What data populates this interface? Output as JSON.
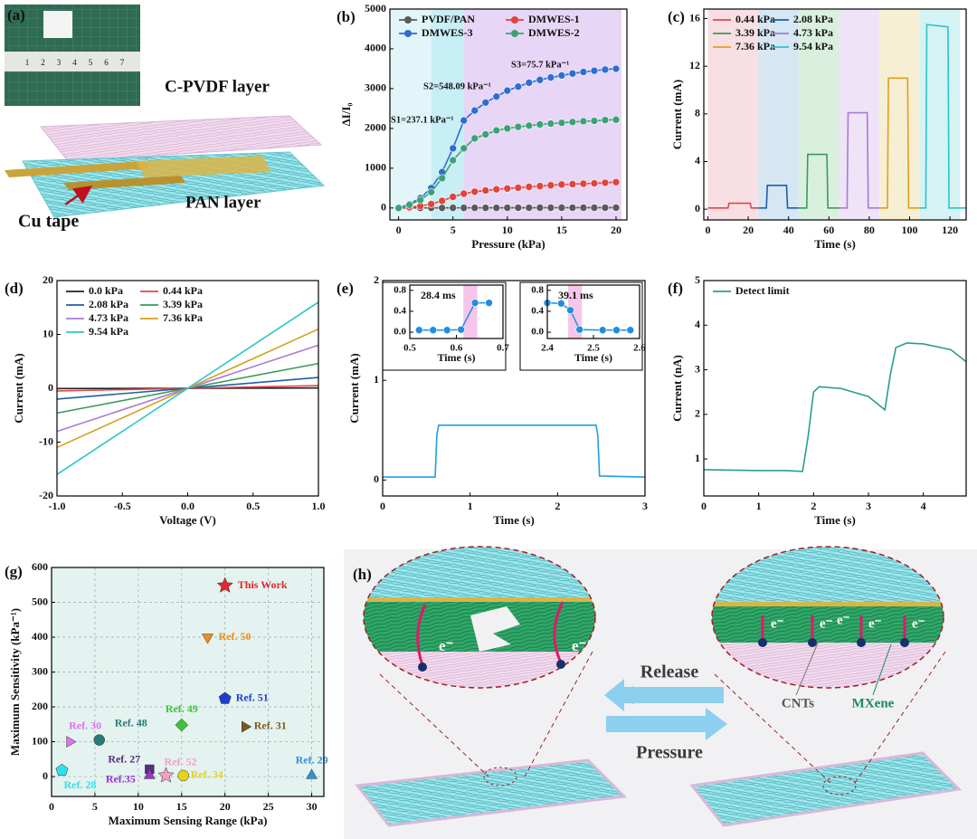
{
  "figure_a": {
    "panel": "(a)",
    "top_layer": "C-PVDF layer",
    "bottom_layer": "PAN layer",
    "electrode": "Cu tape",
    "ruler": [
      1,
      2,
      3,
      4,
      5,
      6,
      7
    ]
  },
  "figure_h": {
    "panel": "(h)",
    "release": "Release",
    "pressure": "Pressure",
    "cnts": "CNTs",
    "mxene": "MXene",
    "electrons": [
      "e⁻",
      "e⁻",
      "e⁻",
      "e⁻",
      "e⁻",
      "e⁻",
      "e⁻"
    ]
  },
  "chart_data": [
    {
      "type": "line",
      "panel": "(b)",
      "xlabel": "Pressure (kPa)",
      "ylabel": "ΔI/I₀",
      "markers": true,
      "legend": "upper left",
      "xlim": [
        -0.8,
        21
      ],
      "ylim": [
        -300,
        5000
      ],
      "xticks": [
        0,
        5,
        10,
        15,
        20
      ],
      "yticks": [
        0,
        1000,
        2000,
        3000,
        4000,
        5000
      ],
      "regions": [
        {
          "x": [
            -0.8,
            3
          ],
          "color": "#e2f6fa"
        },
        {
          "x": [
            3,
            6
          ],
          "color": "#c8eef6"
        },
        {
          "x": [
            6,
            20.5
          ],
          "color": "#e8d6f6"
        }
      ],
      "annotations": [
        "S1=237.1 kPa⁻¹",
        "S2=548.09 kPa⁻¹",
        "S3=75.7 kPa⁻¹"
      ],
      "x": [
        0,
        1,
        2,
        3,
        4,
        5,
        6,
        7,
        8,
        9,
        10,
        11,
        12,
        13,
        14,
        15,
        16,
        17,
        18,
        19,
        20
      ],
      "series": [
        {
          "name": "PVDF/PAN",
          "color": "#5a5a5a",
          "values": [
            0,
            1,
            2,
            3,
            3,
            4,
            4,
            5,
            5,
            5,
            6,
            6,
            6,
            7,
            7,
            7,
            8,
            8,
            8,
            8,
            9
          ]
        },
        {
          "name": "DMWES-1",
          "color": "#e2433b",
          "values": [
            0,
            20,
            50,
            100,
            180,
            280,
            360,
            410,
            440,
            470,
            490,
            510,
            530,
            550,
            570,
            590,
            600,
            610,
            620,
            635,
            650
          ]
        },
        {
          "name": "DMWES-3",
          "color": "#2c6ed2",
          "values": [
            0,
            100,
            250,
            500,
            900,
            1500,
            2200,
            2450,
            2650,
            2800,
            2950,
            3050,
            3150,
            3220,
            3280,
            3330,
            3380,
            3420,
            3450,
            3480,
            3500
          ]
        },
        {
          "name": "DMWES-2",
          "color": "#3aa374",
          "values": [
            0,
            80,
            200,
            400,
            750,
            1200,
            1500,
            1750,
            1850,
            1950,
            2000,
            2040,
            2070,
            2100,
            2120,
            2140,
            2160,
            2180,
            2190,
            2210,
            2220
          ]
        }
      ]
    },
    {
      "type": "line",
      "panel": "(c)",
      "xlabel": "Time (s)",
      "ylabel": "Current (mA)",
      "legend": "upper left",
      "xlim": [
        -2,
        128
      ],
      "ylim": [
        -0.9,
        16.8
      ],
      "xticks": [
        0,
        20,
        40,
        60,
        80,
        100,
        120
      ],
      "yticks": [
        0,
        4,
        8,
        12,
        16
      ],
      "regions": [
        {
          "x": [
            0,
            25
          ],
          "color": "#f8dfe3"
        },
        {
          "x": [
            25,
            45
          ],
          "color": "#d6e6f2"
        },
        {
          "x": [
            45,
            65
          ],
          "color": "#daf0df"
        },
        {
          "x": [
            65,
            85
          ],
          "color": "#efe3f7"
        },
        {
          "x": [
            85,
            105
          ],
          "color": "#f7efd3"
        },
        {
          "x": [
            105,
            125
          ],
          "color": "#d5f2f5"
        }
      ],
      "series": [
        {
          "name": "0.44 kPa",
          "color": "#e04848",
          "x": [
            0,
            10,
            10.5,
            21,
            21.5,
            25
          ],
          "values": [
            0.1,
            0.1,
            0.5,
            0.5,
            0.1,
            0.1
          ]
        },
        {
          "name": "2.08 kPa",
          "color": "#1f5fa8",
          "x": [
            25,
            29,
            29.5,
            39,
            39.5,
            45
          ],
          "values": [
            0.1,
            0.1,
            2.0,
            2.0,
            0.1,
            0.1
          ]
        },
        {
          "name": "3.39 kPa",
          "color": "#3c9a5a",
          "x": [
            45,
            49,
            49.5,
            59,
            59.5,
            65
          ],
          "values": [
            0.1,
            0.1,
            4.6,
            4.6,
            0.1,
            0.1
          ]
        },
        {
          "name": "4.73 kPa",
          "color": "#a77bd6",
          "x": [
            65,
            69,
            69.5,
            79,
            79.5,
            85
          ],
          "values": [
            0.1,
            0.1,
            8.1,
            8.1,
            0.1,
            0.1
          ]
        },
        {
          "name": "7.36 kPa",
          "color": "#e0a020",
          "x": [
            85,
            89,
            89.5,
            99,
            99.5,
            105
          ],
          "values": [
            0.1,
            0.1,
            11.0,
            11.0,
            0.1,
            0.1
          ]
        },
        {
          "name": "9.54 kPa",
          "color": "#2ec4c4",
          "x": [
            105,
            108,
            108.5,
            119,
            119.5,
            128
          ],
          "values": [
            0.1,
            0.1,
            15.5,
            15.3,
            0.1,
            0.1
          ]
        }
      ]
    },
    {
      "type": "line",
      "panel": "(d)",
      "xlabel": "Voltage (V)",
      "ylabel": "Current (mA)",
      "legend": "upper left",
      "xlim": [
        -1,
        1
      ],
      "ylim": [
        -20,
        20
      ],
      "xticks": [
        {
          "value": -1,
          "label": "-1.0"
        },
        -0.5,
        {
          "value": 0,
          "label": "0.0"
        },
        0.5,
        {
          "value": 1,
          "label": "1.0"
        }
      ],
      "yticks": [
        -20,
        -10,
        0,
        10,
        20
      ],
      "x": [
        -1,
        1
      ],
      "series": [
        {
          "name": "0.0 kPa",
          "color": "#222222",
          "values": [
            -0.05,
            0.05
          ]
        },
        {
          "name": "0.44 kPa",
          "color": "#e04848",
          "values": [
            -0.5,
            0.5
          ]
        },
        {
          "name": "2.08 kPa",
          "color": "#1f5fa8",
          "values": [
            -2,
            2
          ]
        },
        {
          "name": "3.39 kPa",
          "color": "#3c9a5a",
          "values": [
            -4.6,
            4.6
          ]
        },
        {
          "name": "4.73 kPa",
          "color": "#a77bd6",
          "values": [
            -8,
            8
          ]
        },
        {
          "name": "7.36 kPa",
          "color": "#d4a020",
          "values": [
            -11,
            11
          ]
        },
        {
          "name": "9.54 kPa",
          "color": "#2ec4c4",
          "values": [
            -16,
            16
          ]
        }
      ]
    },
    {
      "type": "line",
      "panel": "(e)",
      "xlabel": "Time (s)",
      "ylabel": "Current (mA)",
      "xlim": [
        0,
        3
      ],
      "ylim": [
        -0.16,
        2
      ],
      "xticks": [
        0,
        1,
        2,
        3
      ],
      "yticks": [
        0,
        1,
        2
      ],
      "x": [
        0,
        0.6,
        0.62,
        0.64,
        2.44,
        2.46,
        2.48,
        3
      ],
      "series": [
        {
          "color": "#1ea0e6",
          "values": [
            0.03,
            0.03,
            0.45,
            0.55,
            0.55,
            0.45,
            0.04,
            0.03
          ]
        }
      ],
      "insets": [
        {
          "xlim": [
            0.5,
            0.7
          ],
          "ylim": [
            -0.12,
            0.9
          ],
          "xticks": [
            0.5,
            0.6,
            0.7
          ],
          "yticks": [
            {
              "value": 0,
              "label": "0.0"
            },
            0.4,
            0.8
          ],
          "xlabel": "Time (s)",
          "annotation": "28.4 ms",
          "highlight": {
            "x": [
              0.615,
              0.645
            ],
            "color": "#f6c6ea"
          },
          "color": "#1e8fe0",
          "x": [
            0.52,
            0.55,
            0.58,
            0.61,
            0.64,
            0.67
          ],
          "values": [
            0.04,
            0.04,
            0.04,
            0.05,
            0.56,
            0.56
          ]
        },
        {
          "xlim": [
            2.4,
            2.6
          ],
          "ylim": [
            -0.12,
            0.9
          ],
          "xticks": [
            2.4,
            2.5,
            2.6
          ],
          "yticks": [
            {
              "value": 0,
              "label": "0.0"
            },
            0.4,
            0.8
          ],
          "xlabel": "Time (s)",
          "annotation": "39.1 ms",
          "highlight": {
            "x": [
              2.445,
              2.475
            ],
            "color": "#f6c6ea"
          },
          "color": "#1e8fe0",
          "x": [
            2.4,
            2.43,
            2.45,
            2.47,
            2.52,
            2.55,
            2.58
          ],
          "values": [
            0.56,
            0.55,
            0.42,
            0.05,
            0.04,
            0.04,
            0.04
          ]
        }
      ]
    },
    {
      "type": "line",
      "panel": "(f)",
      "xlabel": "Time (s)",
      "ylabel": "Current (nA)",
      "legend": "upper left",
      "xlim": [
        0,
        4.78
      ],
      "ylim": [
        0.17,
        5
      ],
      "xticks": [
        0,
        1,
        2,
        3,
        4
      ],
      "yticks": [
        1,
        2,
        3,
        4,
        5
      ],
      "x": [
        0,
        0.5,
        1,
        1.5,
        1.8,
        1.9,
        2.0,
        2.1,
        2.5,
        3.0,
        3.3,
        3.4,
        3.5,
        3.7,
        4.0,
        4.5,
        4.78
      ],
      "series": [
        {
          "name": "Detect limit",
          "color": "#2a9d8f",
          "values": [
            0.76,
            0.75,
            0.74,
            0.74,
            0.72,
            1.5,
            2.5,
            2.62,
            2.58,
            2.4,
            2.1,
            2.9,
            3.5,
            3.6,
            3.58,
            3.45,
            3.18
          ]
        }
      ]
    },
    {
      "type": "scatter",
      "panel": "(g)",
      "xlabel": "Maximum Sensing Range (kPa)",
      "ylabel": "Maximum Sensitivity (kPa⁻¹)",
      "grid": true,
      "background": "#e4f3ef",
      "xlim": [
        0,
        31.4
      ],
      "ylim": [
        -57,
        600
      ],
      "xticks": [
        0,
        5,
        10,
        15,
        20,
        25,
        30
      ],
      "yticks": [
        0,
        100,
        200,
        300,
        400,
        500,
        600
      ],
      "points": [
        {
          "label": "This Work",
          "x": 20,
          "y": 548,
          "color": "#e8262b",
          "marker": "star"
        },
        {
          "label": "Ref. 50",
          "x": 18,
          "y": 400,
          "color": "#f08c1a",
          "marker": "triangle-down"
        },
        {
          "label": "Ref. 51",
          "x": 20,
          "y": 224,
          "color": "#1f3ecc",
          "marker": "pentagon"
        },
        {
          "label": "Ref. 49",
          "x": 15,
          "y": 148,
          "color": "#3cc23c",
          "marker": "diamond"
        },
        {
          "label": "Ref. 31",
          "x": 22.3,
          "y": 143,
          "color": "#7a5a22",
          "marker": "triangle-right"
        },
        {
          "label": "Ref. 30",
          "x": 2.1,
          "y": 100,
          "color": "#e070f0",
          "marker": "triangle-right"
        },
        {
          "label": "Ref. 48",
          "x": 5.5,
          "y": 105,
          "color": "#2a7a7a",
          "marker": "circle"
        },
        {
          "label": "Ref. 27",
          "x": 11.3,
          "y": 21,
          "color": "#5a2a80",
          "marker": "square"
        },
        {
          "label": "Ref.35",
          "x": 11.3,
          "y": 3,
          "color": "#9933cc",
          "marker": "triangle-up"
        },
        {
          "label": "Ref. 52",
          "x": 13.2,
          "y": 3,
          "color": "#f4a0c0",
          "marker": "star"
        },
        {
          "label": "Ref. 34",
          "x": 15.2,
          "y": 3,
          "color": "#e6d418",
          "marker": "circle"
        },
        {
          "label": "Ref. 28",
          "x": 1.2,
          "y": 18,
          "color": "#30e0f0",
          "marker": "pentagon"
        },
        {
          "label": "Ref. 29",
          "x": 30,
          "y": 3,
          "color": "#3090e0",
          "marker": "triangle-up"
        }
      ]
    }
  ]
}
